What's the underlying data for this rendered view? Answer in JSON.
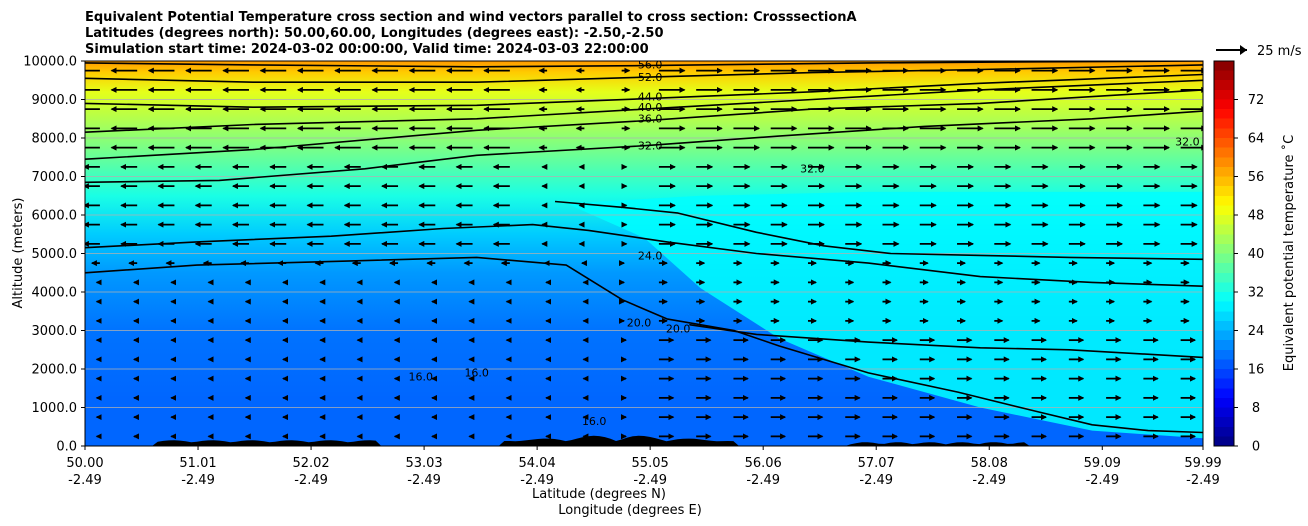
{
  "chart_data": {
    "type": "contour-cross-section",
    "title_lines": [
      "Equivalent Potential Temperature cross section and wind vectors parallel to cross section: CrosssectionA",
      "Latitudes (degrees north): 50.00,60.00, Longitudes (degrees east): -2.50,-2.50",
      "Simulation start time: 2024-03-02 00:00:00, Valid time: 2024-03-03 22:00:00"
    ],
    "ylabel": "Altitude (meters)",
    "xlabel_lines": [
      "Latitude (degrees N)",
      "Longitude (degrees E)"
    ],
    "ylim": [
      0,
      10000
    ],
    "xlim": [
      50.0,
      59.99
    ],
    "yticks": [
      {
        "value": 0,
        "label": "0.0"
      },
      {
        "value": 1000,
        "label": "1000.0"
      },
      {
        "value": 2000,
        "label": "2000.0"
      },
      {
        "value": 3000,
        "label": "3000.0"
      },
      {
        "value": 4000,
        "label": "4000.0"
      },
      {
        "value": 5000,
        "label": "5000.0"
      },
      {
        "value": 6000,
        "label": "6000.0"
      },
      {
        "value": 7000,
        "label": "7000.0"
      },
      {
        "value": 8000,
        "label": "8000.0"
      },
      {
        "value": 9000,
        "label": "9000.0"
      },
      {
        "value": 10000,
        "label": "10000.0"
      }
    ],
    "xticks": [
      {
        "value": 50.0,
        "lat": "50.00",
        "lon": "-2.49"
      },
      {
        "value": 51.01,
        "lat": "51.01",
        "lon": "-2.49"
      },
      {
        "value": 52.02,
        "lat": "52.02",
        "lon": "-2.49"
      },
      {
        "value": 53.03,
        "lat": "53.03",
        "lon": "-2.49"
      },
      {
        "value": 54.04,
        "lat": "54.04",
        "lon": "-2.49"
      },
      {
        "value": 55.05,
        "lat": "55.05",
        "lon": "-2.49"
      },
      {
        "value": 56.06,
        "lat": "56.06",
        "lon": "-2.49"
      },
      {
        "value": 57.07,
        "lat": "57.07",
        "lon": "-2.49"
      },
      {
        "value": 58.08,
        "lat": "58.08",
        "lon": "-2.49"
      },
      {
        "value": 59.09,
        "lat": "59.09",
        "lon": "-2.49"
      },
      {
        "value": 59.99,
        "lat": "59.99",
        "lon": "-2.49"
      }
    ],
    "grid": "horizontal",
    "colorbar": {
      "label": "Equivalent potential temperature ˚C",
      "range": [
        0,
        80
      ],
      "ticks": [
        0,
        8,
        16,
        24,
        32,
        40,
        48,
        56,
        64,
        72
      ]
    },
    "quiver_key": {
      "label": "25 m/s",
      "speed": 25
    },
    "isotherm_levels": [
      20,
      24,
      32,
      36,
      40,
      44,
      52,
      56
    ],
    "isotherms": [
      {
        "level": 56,
        "points": [
          [
            50.0,
            9950
          ],
          [
            51.5,
            9900
          ],
          [
            53.5,
            9850
          ],
          [
            55.0,
            9880
          ],
          [
            57.0,
            9950
          ],
          [
            58.5,
            9980
          ],
          [
            59.99,
            10000
          ]
        ]
      },
      {
        "level": 52,
        "points": [
          [
            50.0,
            9550
          ],
          [
            51.5,
            9450
          ],
          [
            53.5,
            9450
          ],
          [
            55.0,
            9580
          ],
          [
            56.5,
            9700
          ],
          [
            58.0,
            9780
          ],
          [
            59.99,
            9900
          ]
        ]
      },
      {
        "level": 44,
        "points": [
          [
            50.0,
            8900
          ],
          [
            51.5,
            8800
          ],
          [
            53.5,
            8850
          ],
          [
            55.0,
            9020
          ],
          [
            56.5,
            9200
          ],
          [
            58.0,
            9420
          ],
          [
            59.99,
            9650
          ]
        ]
      },
      {
        "level": 40,
        "points": [
          [
            50.0,
            8150
          ],
          [
            51.5,
            8350
          ],
          [
            53.5,
            8500
          ],
          [
            55.0,
            8750
          ],
          [
            56.5,
            9000
          ],
          [
            58.0,
            9250
          ],
          [
            59.99,
            9500
          ]
        ]
      },
      {
        "level": 36,
        "points": [
          [
            50.0,
            7450
          ],
          [
            51.5,
            7700
          ],
          [
            53.5,
            8200
          ],
          [
            55.0,
            8450
          ],
          [
            56.5,
            8750
          ],
          [
            58.0,
            8900
          ],
          [
            59.99,
            9250
          ]
        ]
      },
      {
        "level": 32,
        "points": [
          [
            50.0,
            6850
          ],
          [
            51.2,
            6900
          ],
          [
            52.5,
            7200
          ],
          [
            53.5,
            7550
          ],
          [
            55.0,
            7800
          ],
          [
            56.2,
            8050
          ],
          [
            57.5,
            8300
          ],
          [
            59.0,
            8500
          ],
          [
            59.99,
            8700
          ]
        ]
      },
      {
        "level": 24,
        "points": [
          [
            50.0,
            5150
          ],
          [
            51.0,
            5300
          ],
          [
            52.2,
            5450
          ],
          [
            53.2,
            5650
          ],
          [
            54.0,
            5750
          ],
          [
            54.5,
            5600
          ],
          [
            55.2,
            5300
          ],
          [
            56.0,
            5000
          ],
          [
            57.0,
            4750
          ],
          [
            58.0,
            4400
          ],
          [
            59.0,
            4250
          ],
          [
            59.99,
            4150
          ]
        ]
      },
      {
        "level": 20,
        "points": [
          [
            50.0,
            4500
          ],
          [
            51.0,
            4700
          ],
          [
            52.3,
            4800
          ],
          [
            53.5,
            4900
          ],
          [
            54.3,
            4700
          ],
          [
            54.8,
            3800
          ],
          [
            55.2,
            3300
          ],
          [
            55.8,
            3000
          ],
          [
            56.2,
            2600
          ],
          [
            57.0,
            1900
          ],
          [
            57.8,
            1400
          ],
          [
            58.5,
            900
          ],
          [
            59.0,
            550
          ],
          [
            59.5,
            400
          ],
          [
            59.99,
            350
          ]
        ]
      },
      {
        "level": 32,
        "points": [
          [
            54.2,
            6350
          ],
          [
            54.8,
            6200
          ],
          [
            55.3,
            6050
          ],
          [
            56.0,
            5550
          ],
          [
            56.6,
            5200
          ],
          [
            57.2,
            5000
          ],
          [
            58.0,
            4950
          ],
          [
            58.8,
            4900
          ],
          [
            59.99,
            4850
          ]
        ]
      },
      {
        "level": 24,
        "points": [
          [
            55.4,
            3150
          ],
          [
            56.0,
            2900
          ],
          [
            57.0,
            2700
          ],
          [
            58.0,
            2550
          ],
          [
            58.8,
            2500
          ],
          [
            59.99,
            2300
          ]
        ]
      }
    ],
    "contour_labels": [
      {
        "text": "56.0",
        "x": 55.05,
        "y": 9800
      },
      {
        "text": "52.0",
        "x": 55.05,
        "y": 9480
      },
      {
        "text": "44.0",
        "x": 55.05,
        "y": 8980
      },
      {
        "text": "40.0",
        "x": 55.05,
        "y": 8700
      },
      {
        "text": "36.0",
        "x": 55.05,
        "y": 8400
      },
      {
        "text": "32.0",
        "x": 55.05,
        "y": 7700
      },
      {
        "text": "24.0",
        "x": 55.05,
        "y": 4850
      },
      {
        "text": "20.0",
        "x": 54.95,
        "y": 3100
      },
      {
        "text": "20.0",
        "x": 55.3,
        "y": 2950
      },
      {
        "text": "16.0",
        "x": 53.0,
        "y": 1700
      },
      {
        "text": "16.0",
        "x": 53.5,
        "y": 1800
      },
      {
        "text": "32.0",
        "x": 56.5,
        "y": 7100
      },
      {
        "text": "32.0",
        "x": 59.85,
        "y": 7800
      },
      {
        "text": "16.0",
        "x": 54.55,
        "y": 550
      }
    ]
  }
}
